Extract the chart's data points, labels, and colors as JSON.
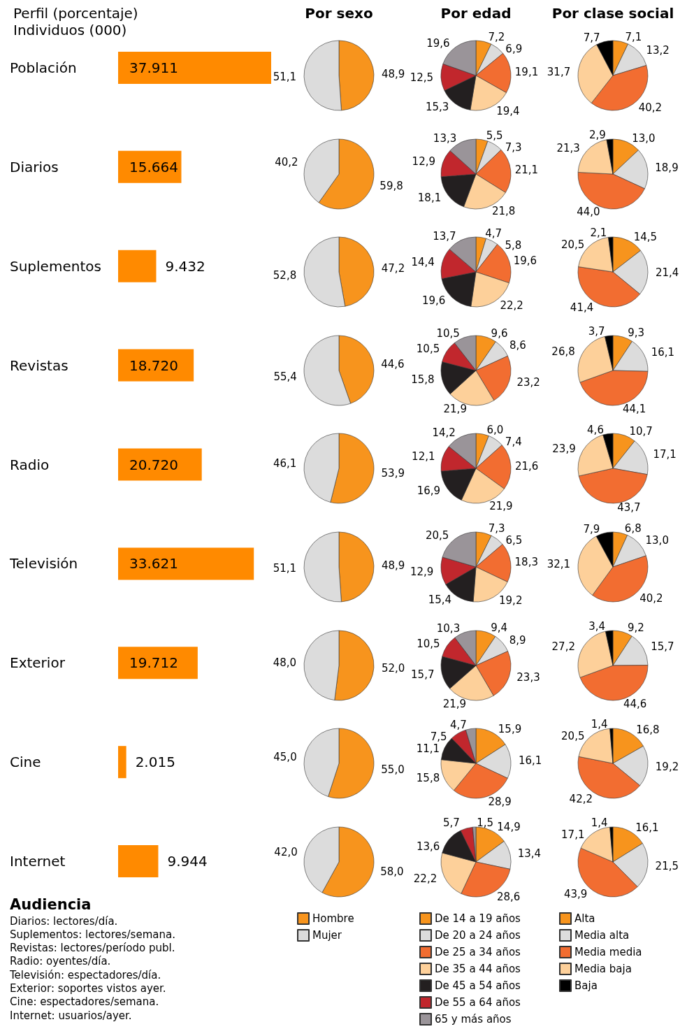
{
  "chart_data": [
    {
      "type": "bar",
      "orientation": "horizontal",
      "title": "Perfil (porcentaje)",
      "subtitle": "Individuos (000)",
      "color": "#ff8a00",
      "categories": [
        "Población",
        "Diarios",
        "Suplementos",
        "Revistas",
        "Radio",
        "Televisión",
        "Exterior",
        "Cine",
        "Internet"
      ],
      "values": [
        37911,
        15664,
        9432,
        18720,
        20720,
        33621,
        19712,
        2015,
        9944
      ],
      "value_labels": [
        "37.911",
        "15.664",
        "9.432",
        "18.720",
        "20.720",
        "33.621",
        "19.712",
        "2.015",
        "9.944"
      ],
      "annotations": [
        "Audiencia",
        "Diarios: lectores/día.",
        "Suplementos: lectores/semana.",
        "Revistas: lectores/período publ.",
        "Radio: oyentes/día.",
        "Televisión: espectadores/día.",
        "Exterior: soportes vistos ayer.",
        "Cine: espectadores/semana.",
        "Internet: usuarios/ayer."
      ]
    },
    {
      "type": "pie",
      "title": "Por sexo",
      "categories": [
        null,
        null
      ],
      "values": [
        48.9,
        51.1
      ],
      "value_labels": [
        "48,9",
        "51,1"
      ],
      "colors": [
        "#f7941d",
        "#dcdcdc"
      ]
    },
    {
      "type": "pie",
      "title": "Por edad",
      "categories": [
        null,
        null,
        null,
        null,
        null,
        null,
        null
      ],
      "values": [
        7.2,
        6.9,
        19.1,
        19.4,
        15.3,
        12.5,
        19.6
      ],
      "value_labels": [
        "7,2",
        "6,9",
        "19,1",
        "19,4",
        "15,3",
        "12,5",
        "19,6"
      ],
      "colors": [
        "#f7941d",
        "#dcdcdc",
        "#f26d31",
        "#fdd09a",
        "#231f20",
        "#c1272d",
        "#9a9499"
      ]
    },
    {
      "type": "pie",
      "title": "Por clase social",
      "categories": [
        null,
        null,
        null,
        null,
        null
      ],
      "values": [
        7.1,
        13.2,
        40.2,
        31.7,
        7.7
      ],
      "value_labels": [
        "7,1",
        "13,2",
        "40,2",
        "31,7",
        "7,7"
      ],
      "colors": [
        "#f7941d",
        "#dcdcdc",
        "#f26d31",
        "#fdd09a",
        "#000000"
      ]
    },
    {
      "type": "pie",
      "categories": [
        null,
        null
      ],
      "values": [
        59.8,
        40.2
      ],
      "value_labels": [
        "59,8",
        "40,2"
      ],
      "colors": [
        "#f7941d",
        "#dcdcdc"
      ]
    },
    {
      "type": "pie",
      "categories": [
        null,
        null,
        null,
        null,
        null,
        null,
        null
      ],
      "values": [
        5.5,
        7.3,
        21.1,
        21.8,
        18.1,
        12.9,
        13.3
      ],
      "value_labels": [
        "5,5",
        "7,3",
        "21,1",
        "21,8",
        "18,1",
        "12,9",
        "13,3"
      ],
      "colors": [
        "#f7941d",
        "#dcdcdc",
        "#f26d31",
        "#fdd09a",
        "#231f20",
        "#c1272d",
        "#9a9499"
      ]
    },
    {
      "type": "pie",
      "categories": [
        null,
        null,
        null,
        null,
        null
      ],
      "values": [
        13.0,
        18.9,
        44.0,
        21.3,
        2.9
      ],
      "value_labels": [
        "13,0",
        "18,9",
        "44,0",
        "21,3",
        "2,9"
      ],
      "colors": [
        "#f7941d",
        "#dcdcdc",
        "#f26d31",
        "#fdd09a",
        "#000000"
      ]
    },
    {
      "type": "pie",
      "categories": [
        null,
        null
      ],
      "values": [
        47.2,
        52.8
      ],
      "value_labels": [
        "47,2",
        "52,8"
      ],
      "colors": [
        "#f7941d",
        "#dcdcdc"
      ]
    },
    {
      "type": "pie",
      "categories": [
        null,
        null,
        null,
        null,
        null,
        null,
        null
      ],
      "values": [
        4.7,
        5.8,
        19.6,
        22.2,
        19.6,
        14.4,
        13.7
      ],
      "value_labels": [
        "4,7",
        "5,8",
        "19,6",
        "22,2",
        "19,6",
        "14,4",
        "13,7"
      ],
      "colors": [
        "#f7941d",
        "#dcdcdc",
        "#f26d31",
        "#fdd09a",
        "#231f20",
        "#c1272d",
        "#9a9499"
      ]
    },
    {
      "type": "pie",
      "categories": [
        null,
        null,
        null,
        null,
        null
      ],
      "values": [
        14.5,
        21.4,
        41.4,
        20.5,
        2.1
      ],
      "value_labels": [
        "14,5",
        "21,4",
        "41,4",
        "20,5",
        "2,1"
      ],
      "colors": [
        "#f7941d",
        "#dcdcdc",
        "#f26d31",
        "#fdd09a",
        "#000000"
      ]
    },
    {
      "type": "pie",
      "categories": [
        null,
        null
      ],
      "values": [
        44.6,
        55.4
      ],
      "value_labels": [
        "44,6",
        "55,4"
      ],
      "colors": [
        "#f7941d",
        "#dcdcdc"
      ]
    },
    {
      "type": "pie",
      "categories": [
        null,
        null,
        null,
        null,
        null,
        null,
        null
      ],
      "values": [
        9.6,
        8.6,
        23.2,
        21.9,
        15.8,
        10.5,
        10.5
      ],
      "value_labels": [
        "9,6",
        "8,6",
        "23,2",
        "21,9",
        "15,8",
        "10,5",
        "10,5"
      ],
      "colors": [
        "#f7941d",
        "#dcdcdc",
        "#f26d31",
        "#fdd09a",
        "#231f20",
        "#c1272d",
        "#9a9499"
      ]
    },
    {
      "type": "pie",
      "categories": [
        null,
        null,
        null,
        null,
        null
      ],
      "values": [
        9.3,
        16.1,
        44.1,
        26.8,
        3.7
      ],
      "value_labels": [
        "9,3",
        "16,1",
        "44,1",
        "26,8",
        "3,7"
      ],
      "colors": [
        "#f7941d",
        "#dcdcdc",
        "#f26d31",
        "#fdd09a",
        "#000000"
      ]
    },
    {
      "type": "pie",
      "categories": [
        null,
        null
      ],
      "values": [
        53.9,
        46.1
      ],
      "value_labels": [
        "53,9",
        "46,1"
      ],
      "colors": [
        "#f7941d",
        "#dcdcdc"
      ]
    },
    {
      "type": "pie",
      "categories": [
        null,
        null,
        null,
        null,
        null,
        null,
        null
      ],
      "values": [
        6.0,
        7.4,
        21.6,
        21.9,
        16.9,
        12.1,
        14.2
      ],
      "value_labels": [
        "6,0",
        "7,4",
        "21,6",
        "21,9",
        "16,9",
        "12,1",
        "14,2"
      ],
      "colors": [
        "#f7941d",
        "#dcdcdc",
        "#f26d31",
        "#fdd09a",
        "#231f20",
        "#c1272d",
        "#9a9499"
      ]
    },
    {
      "type": "pie",
      "categories": [
        null,
        null,
        null,
        null,
        null
      ],
      "values": [
        10.7,
        17.1,
        43.7,
        23.9,
        4.6
      ],
      "value_labels": [
        "10,7",
        "17,1",
        "43,7",
        "23,9",
        "4,6"
      ],
      "colors": [
        "#f7941d",
        "#dcdcdc",
        "#f26d31",
        "#fdd09a",
        "#000000"
      ]
    },
    {
      "type": "pie",
      "categories": [
        null,
        null
      ],
      "values": [
        48.9,
        51.1
      ],
      "value_labels": [
        "48,9",
        "51,1"
      ],
      "colors": [
        "#f7941d",
        "#dcdcdc"
      ]
    },
    {
      "type": "pie",
      "categories": [
        null,
        null,
        null,
        null,
        null,
        null,
        null
      ],
      "values": [
        7.3,
        6.5,
        18.3,
        19.2,
        15.4,
        12.9,
        20.5
      ],
      "value_labels": [
        "7,3",
        "6,5",
        "18,3",
        "19,2",
        "15,4",
        "12,9",
        "20,5"
      ],
      "colors": [
        "#f7941d",
        "#dcdcdc",
        "#f26d31",
        "#fdd09a",
        "#231f20",
        "#c1272d",
        "#9a9499"
      ]
    },
    {
      "type": "pie",
      "categories": [
        null,
        null,
        null,
        null,
        null
      ],
      "values": [
        6.8,
        13.0,
        40.2,
        32.1,
        7.9
      ],
      "value_labels": [
        "6,8",
        "13,0",
        "40,2",
        "32,1",
        "7,9"
      ],
      "colors": [
        "#f7941d",
        "#dcdcdc",
        "#f26d31",
        "#fdd09a",
        "#000000"
      ]
    },
    {
      "type": "pie",
      "categories": [
        null,
        null
      ],
      "values": [
        52.0,
        48.0
      ],
      "value_labels": [
        "52,0",
        "48,0"
      ],
      "colors": [
        "#f7941d",
        "#dcdcdc"
      ]
    },
    {
      "type": "pie",
      "categories": [
        null,
        null,
        null,
        null,
        null,
        null,
        null
      ],
      "values": [
        9.4,
        8.9,
        23.3,
        21.9,
        15.7,
        10.5,
        10.3
      ],
      "value_labels": [
        "9,4",
        "8,9",
        "23,3",
        "21,9",
        "15,7",
        "10,5",
        "10,3"
      ],
      "colors": [
        "#f7941d",
        "#dcdcdc",
        "#f26d31",
        "#fdd09a",
        "#231f20",
        "#c1272d",
        "#9a9499"
      ]
    },
    {
      "type": "pie",
      "categories": [
        null,
        null,
        null,
        null,
        null
      ],
      "values": [
        9.2,
        15.7,
        44.6,
        27.2,
        3.4
      ],
      "value_labels": [
        "9,2",
        "15,7",
        "44,6",
        "27,2",
        "3,4"
      ],
      "colors": [
        "#f7941d",
        "#dcdcdc",
        "#f26d31",
        "#fdd09a",
        "#000000"
      ]
    },
    {
      "type": "pie",
      "categories": [
        null,
        null
      ],
      "values": [
        55.0,
        45.0
      ],
      "value_labels": [
        "55,0",
        "45,0"
      ],
      "colors": [
        "#f7941d",
        "#dcdcdc"
      ]
    },
    {
      "type": "pie",
      "categories": [
        null,
        null,
        null,
        null,
        null,
        null,
        null
      ],
      "values": [
        15.9,
        16.1,
        28.9,
        15.8,
        11.1,
        7.5,
        4.7
      ],
      "value_labels": [
        "15,9",
        "16,1",
        "28,9",
        "15,8",
        "11,1",
        "7,5",
        "4,7"
      ],
      "colors": [
        "#f7941d",
        "#dcdcdc",
        "#f26d31",
        "#fdd09a",
        "#231f20",
        "#c1272d",
        "#9a9499"
      ]
    },
    {
      "type": "pie",
      "categories": [
        null,
        null,
        null,
        null,
        null
      ],
      "values": [
        16.8,
        19.2,
        42.2,
        20.5,
        1.4
      ],
      "value_labels": [
        "16,8",
        "19,2",
        "42,2",
        "20,5",
        "1,4"
      ],
      "colors": [
        "#f7941d",
        "#dcdcdc",
        "#f26d31",
        "#fdd09a",
        "#000000"
      ]
    },
    {
      "type": "pie",
      "legend": "bottom",
      "categories": [
        "Hombre",
        "Mujer"
      ],
      "values": [
        58.0,
        42.0
      ],
      "value_labels": [
        "58,0",
        "42,0"
      ],
      "colors": [
        "#f7941d",
        "#dcdcdc"
      ]
    },
    {
      "type": "pie",
      "legend": "bottom",
      "categories": [
        "De 14 a 19 años",
        "De 20 a 24 años",
        "De 25 a 34 años",
        "De 35 a 44 años",
        "De 45 a 54 años",
        "De 55 a 64 años",
        "65 y más años"
      ],
      "values": [
        14.9,
        13.4,
        28.6,
        22.2,
        13.6,
        5.7,
        1.5
      ],
      "value_labels": [
        "14,9",
        "13,4",
        "28,6",
        "22,2",
        "13,6",
        "5,7",
        "1,5"
      ],
      "colors": [
        "#f7941d",
        "#dcdcdc",
        "#f26d31",
        "#fdd09a",
        "#231f20",
        "#c1272d",
        "#9a9499"
      ]
    },
    {
      "type": "pie",
      "legend": "bottom",
      "categories": [
        "Alta",
        "Media alta",
        "Media media",
        "Media baja",
        "Baja"
      ],
      "values": [
        16.1,
        21.5,
        43.9,
        17.1,
        1.4
      ],
      "value_labels": [
        "16,1",
        "21,5",
        "43,9",
        "17,1",
        "1,4"
      ],
      "colors": [
        "#f7941d",
        "#dcdcdc",
        "#f26d31",
        "#fdd09a",
        "#000000"
      ]
    }
  ]
}
